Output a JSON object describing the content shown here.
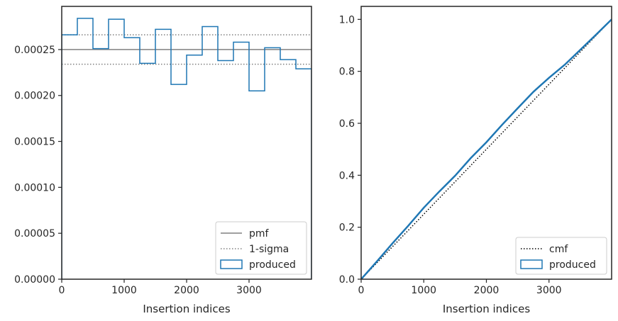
{
  "chart_data": [
    {
      "type": "step-histogram",
      "xlabel": "Insertion indices",
      "ylabel": "",
      "xlim": [
        0,
        4000
      ],
      "ylim": [
        0,
        0.000297
      ],
      "x_ticks": [
        0,
        1000,
        2000,
        3000
      ],
      "x_tick_labels": [
        "0",
        "1000",
        "2000",
        "3000"
      ],
      "y_ticks": [
        0,
        5e-05,
        0.0001,
        0.00015,
        0.0002,
        0.00025
      ],
      "y_tick_labels": [
        "0.00000",
        "0.00005",
        "0.00010",
        "0.00015",
        "0.00020",
        "0.00025"
      ],
      "legend_position": "lower right",
      "legend": [
        {
          "key": "pmf",
          "label": "pmf",
          "style": "solid",
          "color": "#808080"
        },
        {
          "key": "sigma",
          "label": "1-sigma",
          "style": "dotted",
          "color": "#808080"
        },
        {
          "key": "produced",
          "label": "produced",
          "style": "patch",
          "color": "#1f77b4"
        }
      ],
      "pmf": 0.00025,
      "sigma_lines": [
        0.000234,
        0.000266
      ],
      "produced": {
        "bin_edges": [
          0,
          250,
          500,
          750,
          1000,
          1250,
          1500,
          1750,
          2000,
          2250,
          2500,
          2750,
          3000,
          3250,
          3500,
          3750,
          4000
        ],
        "values": [
          0.000266,
          0.000284,
          0.000251,
          0.000283,
          0.000263,
          0.000235,
          0.000272,
          0.000212,
          0.000244,
          0.000275,
          0.000238,
          0.000258,
          0.000205,
          0.000252,
          0.000239,
          0.000229
        ]
      }
    },
    {
      "type": "line",
      "xlabel": "Insertion indices",
      "ylabel": "",
      "xlim": [
        0,
        4000
      ],
      "ylim": [
        0,
        1.05
      ],
      "x_ticks": [
        0,
        1000,
        2000,
        3000
      ],
      "x_tick_labels": [
        "0",
        "1000",
        "2000",
        "3000"
      ],
      "y_ticks": [
        0,
        0.2,
        0.4,
        0.6,
        0.8,
        1.0
      ],
      "y_tick_labels": [
        "0.0",
        "0.2",
        "0.4",
        "0.6",
        "0.8",
        "1.0"
      ],
      "legend_position": "lower right",
      "legend": [
        {
          "key": "cmf",
          "label": "cmf",
          "style": "dotted",
          "color": "#000000"
        },
        {
          "key": "produced",
          "label": "produced",
          "style": "patch",
          "color": "#1f77b4"
        }
      ],
      "cmf": {
        "x": [
          0,
          4000
        ],
        "y": [
          0,
          1
        ]
      },
      "produced": {
        "x": [
          0,
          250,
          500,
          750,
          1000,
          1250,
          1500,
          1750,
          2000,
          2250,
          2500,
          2750,
          3000,
          3250,
          3500,
          3750,
          4000
        ],
        "y": [
          0,
          0.068,
          0.138,
          0.205,
          0.275,
          0.338,
          0.398,
          0.466,
          0.527,
          0.594,
          0.658,
          0.721,
          0.775,
          0.825,
          0.883,
          0.941,
          1.0
        ]
      }
    }
  ]
}
